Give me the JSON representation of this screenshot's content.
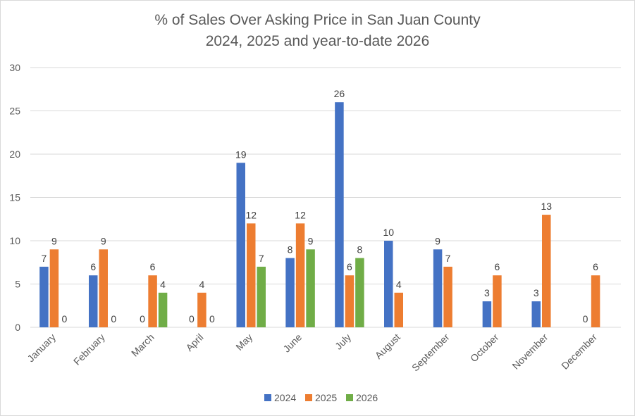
{
  "chart_data": {
    "type": "bar",
    "title": "% of Sales Over Asking Price in San Juan County",
    "subtitle": "2024, 2025 and year-to-date 2026",
    "xlabel": "",
    "ylabel": "",
    "ylim": [
      0,
      30
    ],
    "yticks": [
      0,
      5,
      10,
      15,
      20,
      25,
      30
    ],
    "grid": true,
    "legend": "bottom",
    "categories": [
      "January",
      "February",
      "March",
      "April",
      "May",
      "June",
      "July",
      "August",
      "September",
      "October",
      "November",
      "December"
    ],
    "series": [
      {
        "name": "2024",
        "color": "#4472c4",
        "values": [
          7,
          6,
          0,
          0,
          19,
          8,
          26,
          10,
          9,
          3,
          3,
          0
        ]
      },
      {
        "name": "2025",
        "color": "#ed7d31",
        "values": [
          9,
          9,
          6,
          4,
          12,
          12,
          6,
          4,
          7,
          6,
          13,
          6
        ]
      },
      {
        "name": "2026",
        "color": "#70ad47",
        "values": [
          0,
          0,
          4,
          0,
          7,
          9,
          8,
          null,
          null,
          null,
          null,
          null
        ]
      }
    ]
  }
}
